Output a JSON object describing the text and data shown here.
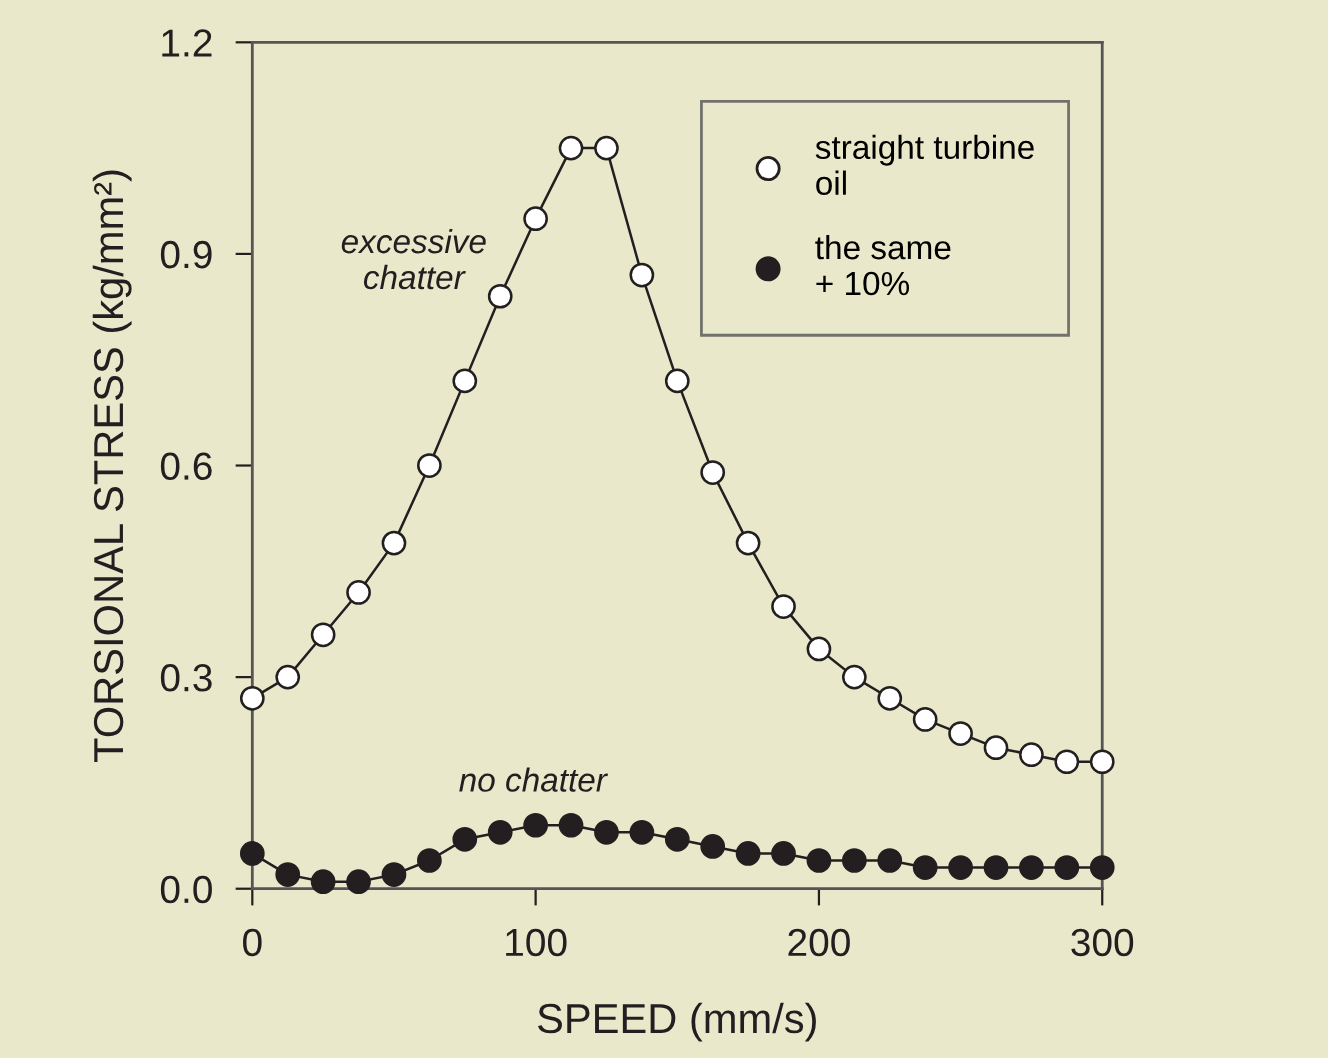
{
  "chart_data": {
    "type": "line",
    "xlabel": "SPEED (mm/s)",
    "ylabel": "TORSIONAL STRESS (kg/mm²)",
    "x": [
      0,
      12.5,
      25,
      37.5,
      50,
      62.5,
      75,
      87.5,
      100,
      112.5,
      125,
      137.5,
      150,
      162.5,
      175,
      187.5,
      200,
      212.5,
      225,
      237.5,
      250,
      262.5,
      275,
      287.5,
      300
    ],
    "series": [
      {
        "name": "straight turbine\noil",
        "color": "#ffffff",
        "values": [
          0.27,
          0.3,
          0.36,
          0.42,
          0.49,
          0.6,
          0.72,
          0.84,
          0.95,
          1.05,
          1.05,
          0.87,
          0.72,
          0.59,
          0.49,
          0.4,
          0.34,
          0.3,
          0.27,
          0.24,
          0.22,
          0.2,
          0.19,
          0.18,
          0.18
        ]
      },
      {
        "name": "the same\n+ 10%",
        "color": "#231f20",
        "values": [
          0.05,
          0.02,
          0.01,
          0.01,
          0.02,
          0.04,
          0.07,
          0.08,
          0.09,
          0.09,
          0.08,
          0.08,
          0.07,
          0.06,
          0.05,
          0.05,
          0.04,
          0.04,
          0.04,
          0.03,
          0.03,
          0.03,
          0.03,
          0.03,
          0.03
        ]
      }
    ],
    "xlim": [
      0,
      300
    ],
    "xticks": [
      0,
      100,
      200,
      300
    ],
    "ylim": [
      0,
      1.2
    ],
    "yticks": [
      {
        "value": 0,
        "label": "0.0"
      },
      {
        "value": 0.3,
        "label": "0.3"
      },
      {
        "value": 0.6,
        "label": "0.6"
      },
      {
        "value": 0.9,
        "label": "0.9"
      },
      {
        "value": 1.2,
        "label": "1.2"
      }
    ],
    "annotations": [
      "excessive\nchatter",
      "no chatter"
    ],
    "marker": "circle",
    "legend": "top right",
    "grid": false
  }
}
